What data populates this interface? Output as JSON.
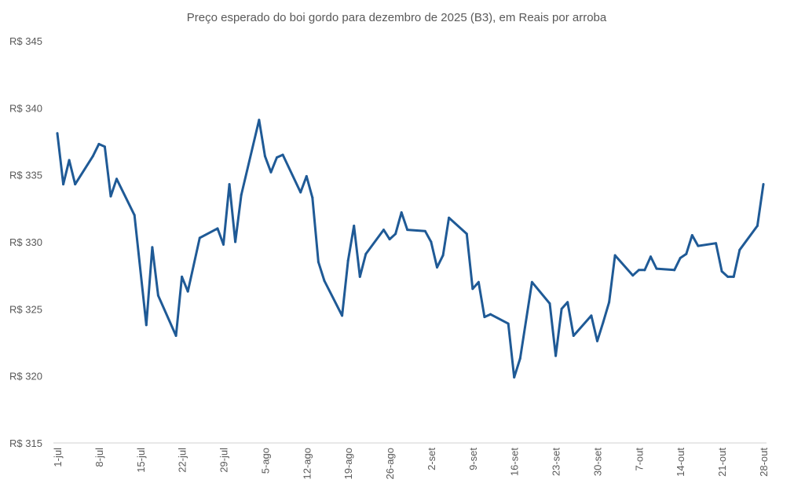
{
  "chart_data": {
    "type": "line",
    "title": "Preço esperado do boi gordo para dezembro de 2025 (B3), em Reais por arroba",
    "xlabel": "",
    "ylabel": "",
    "ylim": [
      315,
      345
    ],
    "yticks": [
      345,
      340,
      335,
      330,
      325,
      320,
      315
    ],
    "ytick_labels": [
      "R$ 345",
      "R$ 340",
      "R$ 335",
      "R$ 330",
      "R$ 325",
      "R$ 320",
      "R$ 315"
    ],
    "xlim": [
      "2025-07-01",
      "2025-10-28"
    ],
    "xtick_labels": [
      "1-jul",
      "8-jul",
      "15-jul",
      "22-jul",
      "29-jul",
      "5-ago",
      "12-ago",
      "19-ago",
      "26-ago",
      "2-set",
      "9-set",
      "16-set",
      "23-set",
      "30-set",
      "7-out",
      "14-out",
      "21-out",
      "28-out"
    ],
    "grid": false,
    "line_color": "#1F5A96",
    "series": [
      {
        "x": [
          "2025-07-01",
          "2025-07-02",
          "2025-07-03",
          "2025-07-04",
          "2025-07-07",
          "2025-07-08",
          "2025-07-09",
          "2025-07-10",
          "2025-07-11",
          "2025-07-14",
          "2025-07-16",
          "2025-07-17",
          "2025-07-18",
          "2025-07-21",
          "2025-07-22",
          "2025-07-23",
          "2025-07-25",
          "2025-07-28",
          "2025-07-29",
          "2025-07-30",
          "2025-07-31",
          "2025-08-01",
          "2025-08-04",
          "2025-08-05",
          "2025-08-06",
          "2025-08-07",
          "2025-08-08",
          "2025-08-11",
          "2025-08-12",
          "2025-08-13",
          "2025-08-14",
          "2025-08-15",
          "2025-08-18",
          "2025-08-19",
          "2025-08-20",
          "2025-08-21",
          "2025-08-22",
          "2025-08-25",
          "2025-08-26",
          "2025-08-27",
          "2025-08-28",
          "2025-08-29",
          "2025-09-01",
          "2025-09-02",
          "2025-09-03",
          "2025-09-04",
          "2025-09-05",
          "2025-09-08",
          "2025-09-09",
          "2025-09-10",
          "2025-09-11",
          "2025-09-12",
          "2025-09-15",
          "2025-09-16",
          "2025-09-17",
          "2025-09-19",
          "2025-09-22",
          "2025-09-23",
          "2025-09-24",
          "2025-09-25",
          "2025-09-26",
          "2025-09-29",
          "2025-09-30",
          "2025-10-01",
          "2025-10-02",
          "2025-10-03",
          "2025-10-06",
          "2025-10-07",
          "2025-10-08",
          "2025-10-09",
          "2025-10-10",
          "2025-10-13",
          "2025-10-14",
          "2025-10-15",
          "2025-10-16",
          "2025-10-17",
          "2025-10-20",
          "2025-10-21",
          "2025-10-22",
          "2025-10-23",
          "2025-10-24",
          "2025-10-27",
          "2025-10-28"
        ],
        "values": [
          338.1,
          334.3,
          336.1,
          334.3,
          336.4,
          337.3,
          337.1,
          333.4,
          334.7,
          332.0,
          323.8,
          329.6,
          326.0,
          323.0,
          327.4,
          326.3,
          330.3,
          331.0,
          329.8,
          334.3,
          330.0,
          333.5,
          339.1,
          336.4,
          335.2,
          336.3,
          336.5,
          333.7,
          334.9,
          333.3,
          328.5,
          327.1,
          324.5,
          328.6,
          331.2,
          327.4,
          329.1,
          330.9,
          330.2,
          330.6,
          332.2,
          330.9,
          330.8,
          330.0,
          328.1,
          329.0,
          331.8,
          330.6,
          326.5,
          327.0,
          324.4,
          324.6,
          323.9,
          319.9,
          321.3,
          327.0,
          325.4,
          321.5,
          325.0,
          325.5,
          323.0,
          324.5,
          322.6,
          324.0,
          325.5,
          329.0,
          327.5,
          327.9,
          327.9,
          328.9,
          328.0,
          327.9,
          328.8,
          329.1,
          330.5,
          329.7,
          329.9,
          327.8,
          327.4,
          327.4,
          329.4,
          331.2,
          334.3
        ]
      }
    ]
  }
}
